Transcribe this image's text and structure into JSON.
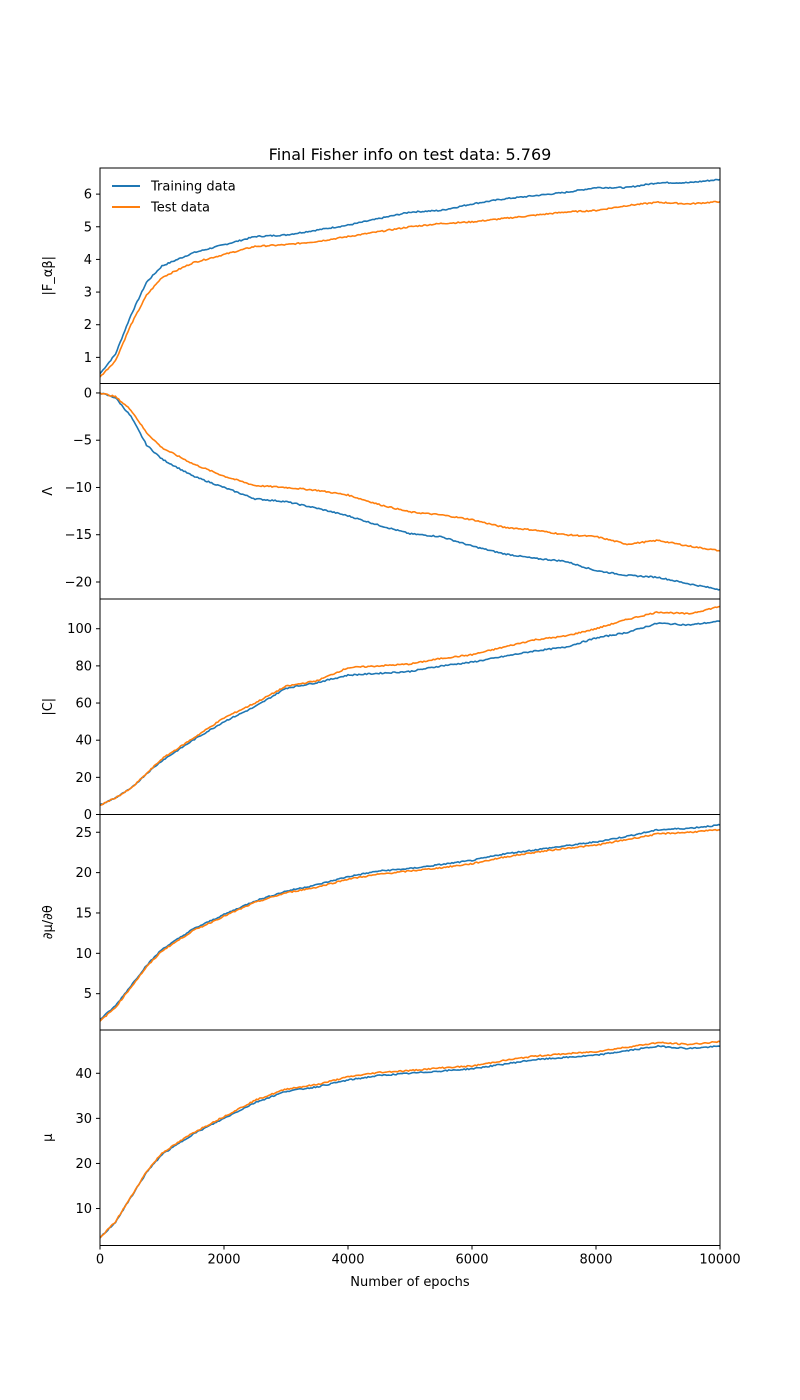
{
  "chart_data": {
    "type": "line",
    "title": "Final Fisher info on test data: 5.769",
    "xlabel": "Number of epochs",
    "xlim": [
      0,
      10000
    ],
    "xticks": [
      0,
      2000,
      4000,
      6000,
      8000,
      10000
    ],
    "legend": {
      "placement": "top-left",
      "frameon": false
    },
    "colors": {
      "Training data": "#1f77b4",
      "Test data": "#ff7f0e"
    },
    "panels": [
      {
        "ylabel": "|F_αβ|",
        "ylim": [
          0.2,
          6.8
        ],
        "yticks": [
          1,
          2,
          3,
          4,
          5,
          6
        ],
        "x": [
          0,
          250,
          500,
          750,
          1000,
          1500,
          2000,
          2500,
          3000,
          3500,
          4000,
          4500,
          5000,
          5500,
          6000,
          6500,
          7000,
          7500,
          8000,
          8500,
          9000,
          9500,
          10000
        ],
        "series": [
          {
            "name": "Training data",
            "values": [
              0.5,
              1.1,
              2.3,
              3.3,
              3.8,
              4.2,
              4.45,
              4.7,
              4.75,
              4.9,
              5.05,
              5.25,
              5.45,
              5.5,
              5.7,
              5.85,
              5.95,
              6.05,
              6.2,
              6.2,
              6.35,
              6.35,
              6.45
            ]
          },
          {
            "name": "Test data",
            "values": [
              0.4,
              0.9,
              2.0,
              2.9,
              3.45,
              3.9,
              4.15,
              4.4,
              4.45,
              4.55,
              4.7,
              4.85,
              5.0,
              5.1,
              5.15,
              5.25,
              5.35,
              5.45,
              5.5,
              5.65,
              5.75,
              5.7,
              5.77
            ]
          }
        ]
      },
      {
        "ylabel": "Λ",
        "ylim": [
          -21.8,
          1.0
        ],
        "yticks": [
          0,
          -5,
          -10,
          -15,
          -20
        ],
        "x": [
          0,
          250,
          500,
          750,
          1000,
          1500,
          2000,
          2500,
          3000,
          3500,
          4000,
          4500,
          5000,
          5500,
          6000,
          6500,
          7000,
          7500,
          8000,
          8500,
          9000,
          9500,
          10000
        ],
        "series": [
          {
            "name": "Training data",
            "values": [
              0,
              -0.5,
              -2.5,
              -5.5,
              -7.0,
              -8.8,
              -10.0,
              -11.2,
              -11.5,
              -12.2,
              -13.0,
              -14.0,
              -14.9,
              -15.2,
              -16.2,
              -17.0,
              -17.5,
              -17.8,
              -18.8,
              -19.3,
              -19.5,
              -20.2,
              -20.8
            ]
          },
          {
            "name": "Test data",
            "values": [
              0,
              -0.4,
              -1.8,
              -4.2,
              -5.8,
              -7.5,
              -8.8,
              -9.8,
              -10.0,
              -10.3,
              -10.8,
              -11.8,
              -12.6,
              -12.9,
              -13.4,
              -14.2,
              -14.5,
              -15.0,
              -15.2,
              -16.0,
              -15.6,
              -16.2,
              -16.7
            ]
          }
        ]
      },
      {
        "ylabel": "|C|",
        "ylim": [
          0,
          116
        ],
        "yticks": [
          0,
          20,
          40,
          60,
          80,
          100
        ],
        "x": [
          0,
          250,
          500,
          750,
          1000,
          1500,
          2000,
          2500,
          3000,
          3500,
          4000,
          4500,
          5000,
          5500,
          6000,
          6500,
          7000,
          7500,
          8000,
          8500,
          9000,
          9500,
          10000
        ],
        "series": [
          {
            "name": "Training data",
            "values": [
              5,
              9,
              14,
              22,
              29,
              40,
              50,
              58,
              68,
              71,
              75,
              76,
              77,
              80,
              82,
              85,
              88,
              90,
              95,
              98,
              103,
              102,
              104
            ]
          },
          {
            "name": "Test data",
            "values": [
              5,
              9,
              14,
              22,
              30,
              41,
              52,
              60,
              69,
              72,
              79,
              80,
              81,
              84,
              86,
              90,
              94,
              96,
              100,
              105,
              109,
              108,
              112
            ]
          }
        ]
      },
      {
        "ylabel": "∂μ/∂θ",
        "ylim": [
          0.5,
          27.2
        ],
        "yticks": [
          5,
          10,
          15,
          20,
          25
        ],
        "x": [
          0,
          250,
          500,
          750,
          1000,
          1500,
          2000,
          2500,
          3000,
          3500,
          4000,
          4500,
          5000,
          5500,
          6000,
          6500,
          7000,
          7500,
          8000,
          8500,
          9000,
          9500,
          10000
        ],
        "series": [
          {
            "name": "Training data",
            "values": [
              1.8,
              3.5,
              6.0,
              8.5,
              10.5,
              13.0,
              14.8,
              16.5,
              17.7,
              18.5,
              19.5,
              20.2,
              20.5,
              21.0,
              21.5,
              22.3,
              22.8,
              23.3,
              23.8,
              24.5,
              25.3,
              25.5,
              25.9
            ]
          },
          {
            "name": "Test data",
            "values": [
              1.6,
              3.3,
              5.8,
              8.3,
              10.3,
              12.8,
              14.6,
              16.3,
              17.5,
              18.2,
              19.2,
              19.8,
              20.2,
              20.6,
              21.1,
              21.9,
              22.5,
              23.0,
              23.4,
              24.1,
              24.8,
              25.0,
              25.3
            ]
          }
        ]
      },
      {
        "ylabel": "μ",
        "ylim": [
          1.8,
          49.6
        ],
        "yticks": [
          10,
          20,
          30,
          40
        ],
        "x": [
          0,
          250,
          500,
          750,
          1000,
          1500,
          2000,
          2500,
          3000,
          3500,
          4000,
          4500,
          5000,
          5500,
          6000,
          6500,
          7000,
          7500,
          8000,
          8500,
          9000,
          9500,
          10000
        ],
        "series": [
          {
            "name": "Training data",
            "values": [
              3.5,
              7.0,
              12.5,
              18.0,
              22.0,
              26.5,
              30.0,
              33.5,
              36.0,
              37.0,
              38.5,
              39.5,
              40.0,
              40.5,
              41.0,
              42.0,
              43.0,
              43.5,
              44.0,
              45.0,
              46.0,
              45.5,
              46.0
            ]
          },
          {
            "name": "Test data",
            "values": [
              3.5,
              7.1,
              12.6,
              18.2,
              22.3,
              26.8,
              30.4,
              34.0,
              36.5,
              37.5,
              39.2,
              40.2,
              40.6,
              41.2,
              41.6,
              42.8,
              43.8,
              44.3,
              44.8,
              45.8,
              46.8,
              46.4,
              47.0
            ]
          }
        ]
      }
    ]
  }
}
